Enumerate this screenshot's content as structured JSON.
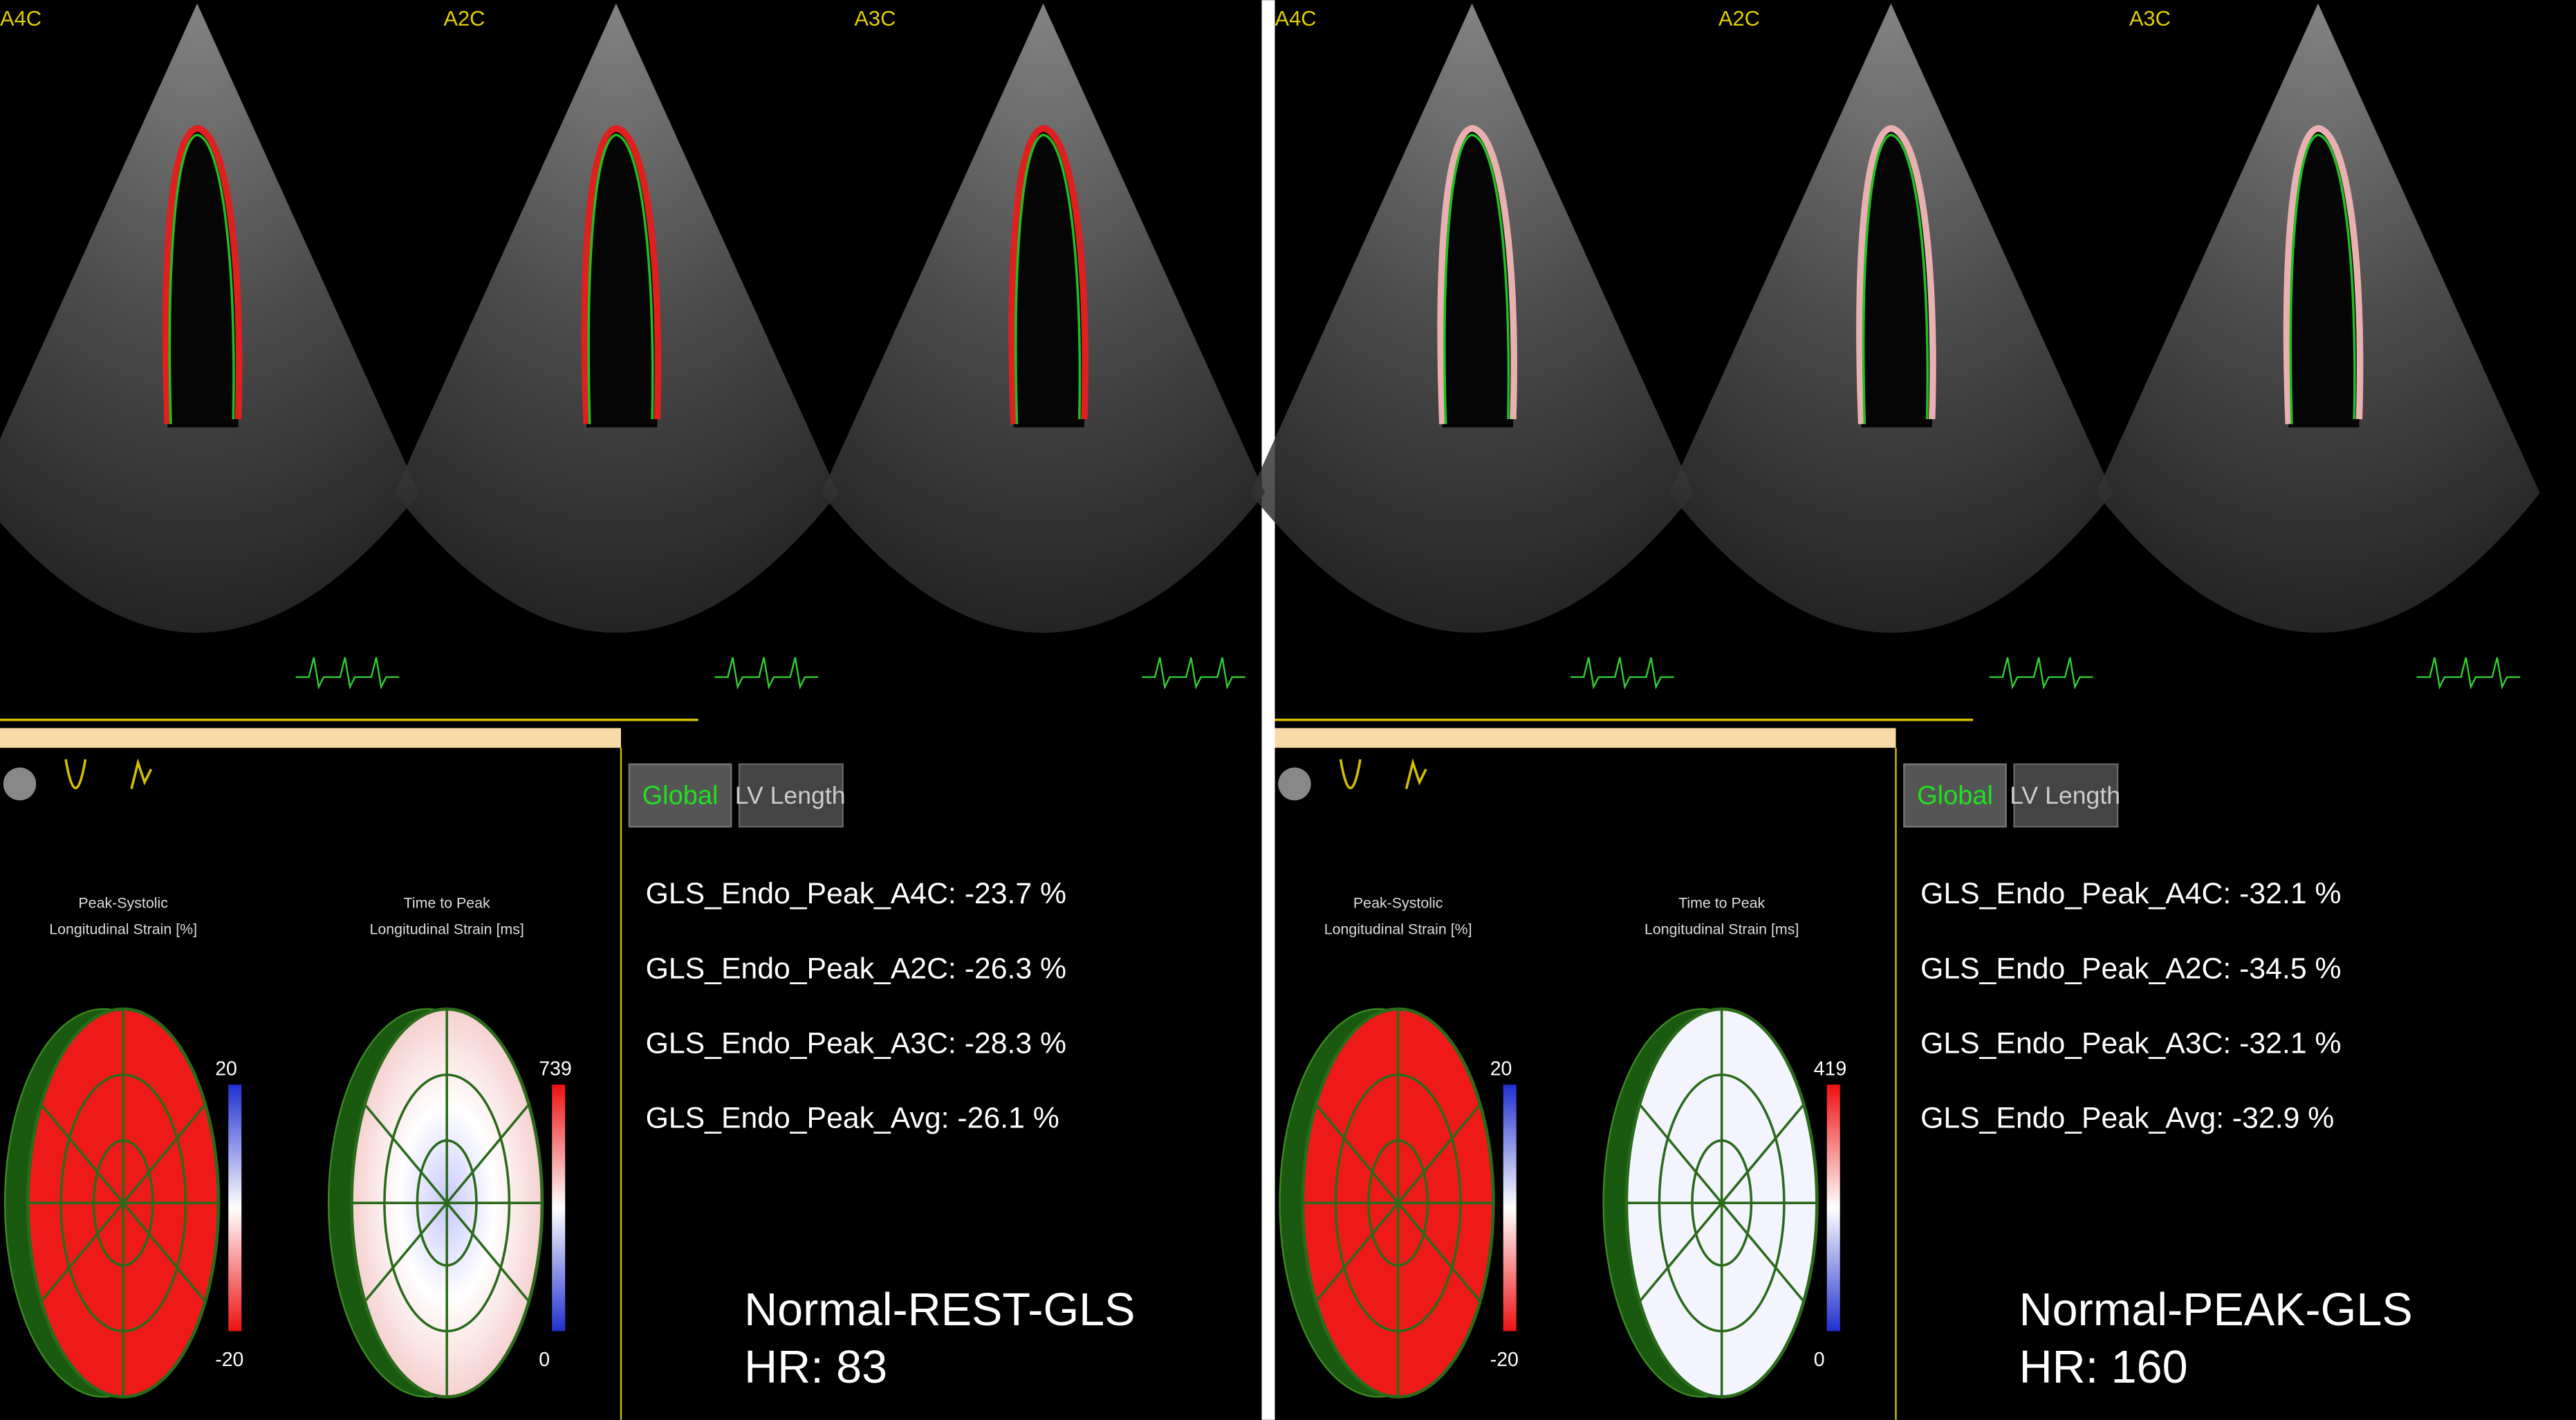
{
  "panels": [
    {
      "views": [
        "A4C",
        "A2C",
        "A3C"
      ],
      "buttons": [
        "Global",
        "LV Length"
      ],
      "measurements": [
        "GLS_Endo_Peak_A4C: -23.7 %",
        "GLS_Endo_Peak_A2C: -26.3 %",
        "GLS_Endo_Peak_A3C: -28.3 %",
        "GLS_Endo_Peak_Avg: -26.1 %"
      ],
      "strain_title": [
        "Peak-Systolic",
        "Longitudinal Strain [%]"
      ],
      "ttp_title": [
        "Time to Peak",
        "Longitudinal Strain [ms]"
      ],
      "strain_scale": [
        "20",
        "-20"
      ],
      "ttp_scale": [
        "739",
        "0"
      ],
      "caption": "Normal-REST-GLS",
      "heart_rate": "HR: 83"
    },
    {
      "views": [
        "A4C",
        "A2C",
        "A3C"
      ],
      "buttons": [
        "Global",
        "LV Length"
      ],
      "measurements": [
        "GLS_Endo_Peak_A4C: -32.1 %",
        "GLS_Endo_Peak_A2C: -34.5 %",
        "GLS_Endo_Peak_A3C: -32.1 %",
        "GLS_Endo_Peak_Avg: -32.9 %"
      ],
      "strain_title": [
        "Peak-Systolic",
        "Longitudinal Strain [%]"
      ],
      "ttp_title": [
        "Time to Peak",
        "Longitudinal Strain [ms]"
      ],
      "strain_scale": [
        "20",
        "-20"
      ],
      "ttp_scale": [
        "419",
        "0"
      ],
      "caption": "Normal-PEAK-GLS",
      "heart_rate": "HR: 160"
    }
  ]
}
